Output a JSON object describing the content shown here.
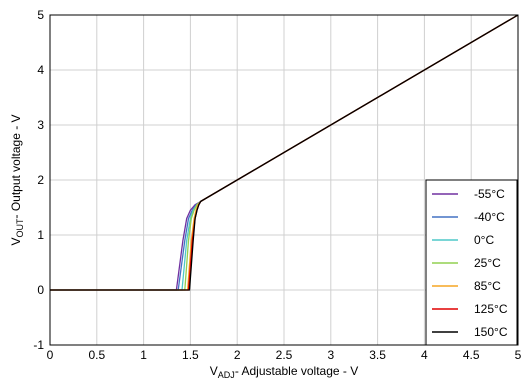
{
  "chart_data": {
    "type": "line",
    "title": "",
    "xlabel": {
      "main": "V",
      "sub": "ADJ",
      "rest": "- Adjustable voltage - V"
    },
    "ylabel": {
      "main": "V",
      "sub": "OUT",
      "rest": "- Output voltage - V"
    },
    "xlim": [
      0,
      5
    ],
    "ylim": [
      -1,
      5
    ],
    "x_ticks": [
      0,
      0.5,
      1,
      1.5,
      2,
      2.5,
      3,
      3.5,
      4,
      4.5,
      5
    ],
    "x_tick_labels": [
      "0",
      "0.5",
      "1",
      "1.5",
      "2",
      "2.5",
      "3",
      "3.5",
      "4",
      "4.5",
      "5"
    ],
    "y_ticks": [
      -1,
      0,
      1,
      2,
      3,
      4,
      5
    ],
    "y_tick_labels": [
      "-1",
      "0",
      "1",
      "2",
      "3",
      "4",
      "5"
    ],
    "grid": true,
    "legend_position": "bottom-right",
    "series": [
      {
        "name": "-55°C",
        "color": "#7030a0",
        "x": [
          0,
          1.35,
          1.42,
          1.46,
          1.5,
          1.55,
          1.6,
          5
        ],
        "y": [
          0,
          0,
          0.9,
          1.3,
          1.45,
          1.55,
          1.6,
          5
        ]
      },
      {
        "name": "-40°C",
        "color": "#4472c4",
        "x": [
          0,
          1.37,
          1.44,
          1.48,
          1.52,
          1.56,
          1.6,
          5
        ],
        "y": [
          0,
          0,
          0.9,
          1.3,
          1.45,
          1.55,
          1.6,
          5
        ]
      },
      {
        "name": "0°C",
        "color": "#4fc8c8",
        "x": [
          0,
          1.41,
          1.46,
          1.5,
          1.53,
          1.57,
          1.61,
          5
        ],
        "y": [
          0,
          0,
          0.9,
          1.3,
          1.45,
          1.55,
          1.61,
          5
        ]
      },
      {
        "name": "25°C",
        "color": "#92d050",
        "x": [
          0,
          1.44,
          1.48,
          1.51,
          1.54,
          1.57,
          1.61,
          5
        ],
        "y": [
          0,
          0,
          0.9,
          1.3,
          1.45,
          1.55,
          1.61,
          5
        ]
      },
      {
        "name": "85°C",
        "color": "#f5a623",
        "x": [
          0,
          1.47,
          1.51,
          1.54,
          1.56,
          1.58,
          1.61,
          5
        ],
        "y": [
          0,
          0,
          0.9,
          1.3,
          1.45,
          1.55,
          1.61,
          5
        ]
      },
      {
        "name": "125°C",
        "color": "#e00000",
        "x": [
          0,
          1.48,
          1.52,
          1.55,
          1.57,
          1.59,
          1.61,
          5
        ],
        "y": [
          0,
          0,
          0.9,
          1.3,
          1.45,
          1.55,
          1.61,
          5
        ]
      },
      {
        "name": "150°C",
        "color": "#000000",
        "x": [
          0,
          1.49,
          1.53,
          1.55,
          1.57,
          1.59,
          1.61,
          5
        ],
        "y": [
          0,
          0,
          0.9,
          1.3,
          1.45,
          1.55,
          1.61,
          5
        ]
      }
    ]
  }
}
